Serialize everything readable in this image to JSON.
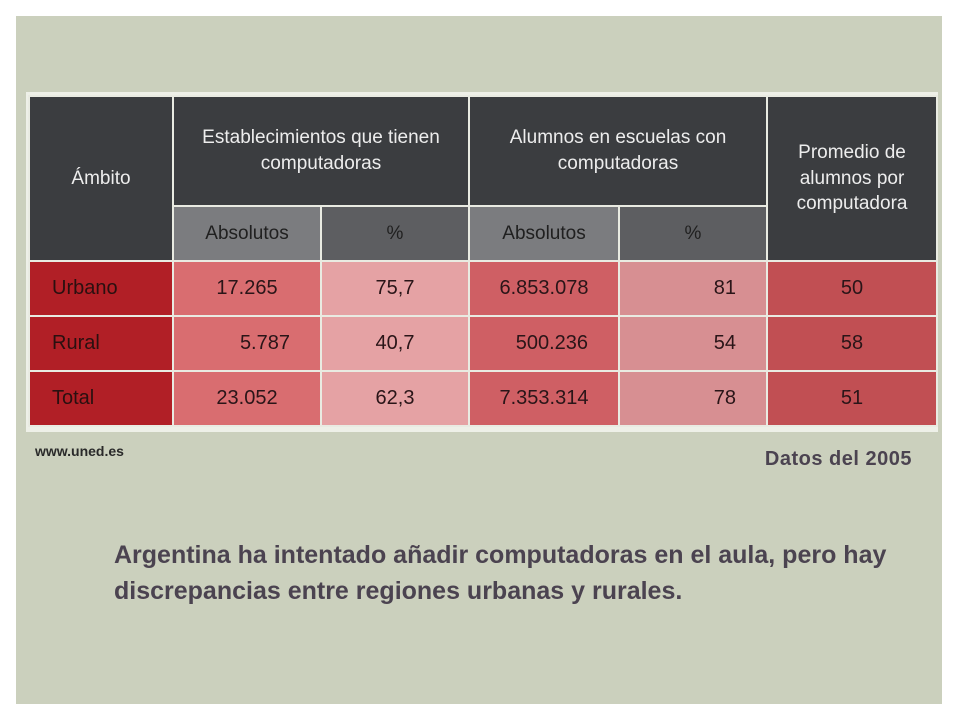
{
  "table": {
    "headers": {
      "ambito": "Ámbito",
      "establecimientos": "Establecimientos que tienen computadoras",
      "alumnos": "Alumnos en escuelas con computadoras",
      "promedio": "Promedio de alumnos por computadora",
      "absolutos": "Absolutos",
      "porcentaje": "%"
    },
    "rows": [
      {
        "ambito": "Urbano",
        "est_abs": "17.265",
        "est_pct": "75,7",
        "alu_abs": "6.853.078",
        "alu_pct": "81",
        "promedio": "50"
      },
      {
        "ambito": "Rural",
        "est_abs": "5.787",
        "est_pct": "40,7",
        "alu_abs": "500.236",
        "alu_pct": "54",
        "promedio": "58"
      },
      {
        "ambito": "Total",
        "est_abs": "23.052",
        "est_pct": "62,3",
        "alu_abs": "7.353.314",
        "alu_pct": "78",
        "promedio": "51"
      }
    ]
  },
  "source": "www.uned.es",
  "date_note": "Datos del 2005",
  "caption": "Argentina ha intentado añadir computadoras en el aula, pero hay discrepancias entre regiones urbanas y rurales.",
  "colors": {
    "slide_bg": "#cbd0bd",
    "header_dark": "#3b3d40",
    "label_red": "#b11f26",
    "text_purple": "#4b4350"
  }
}
